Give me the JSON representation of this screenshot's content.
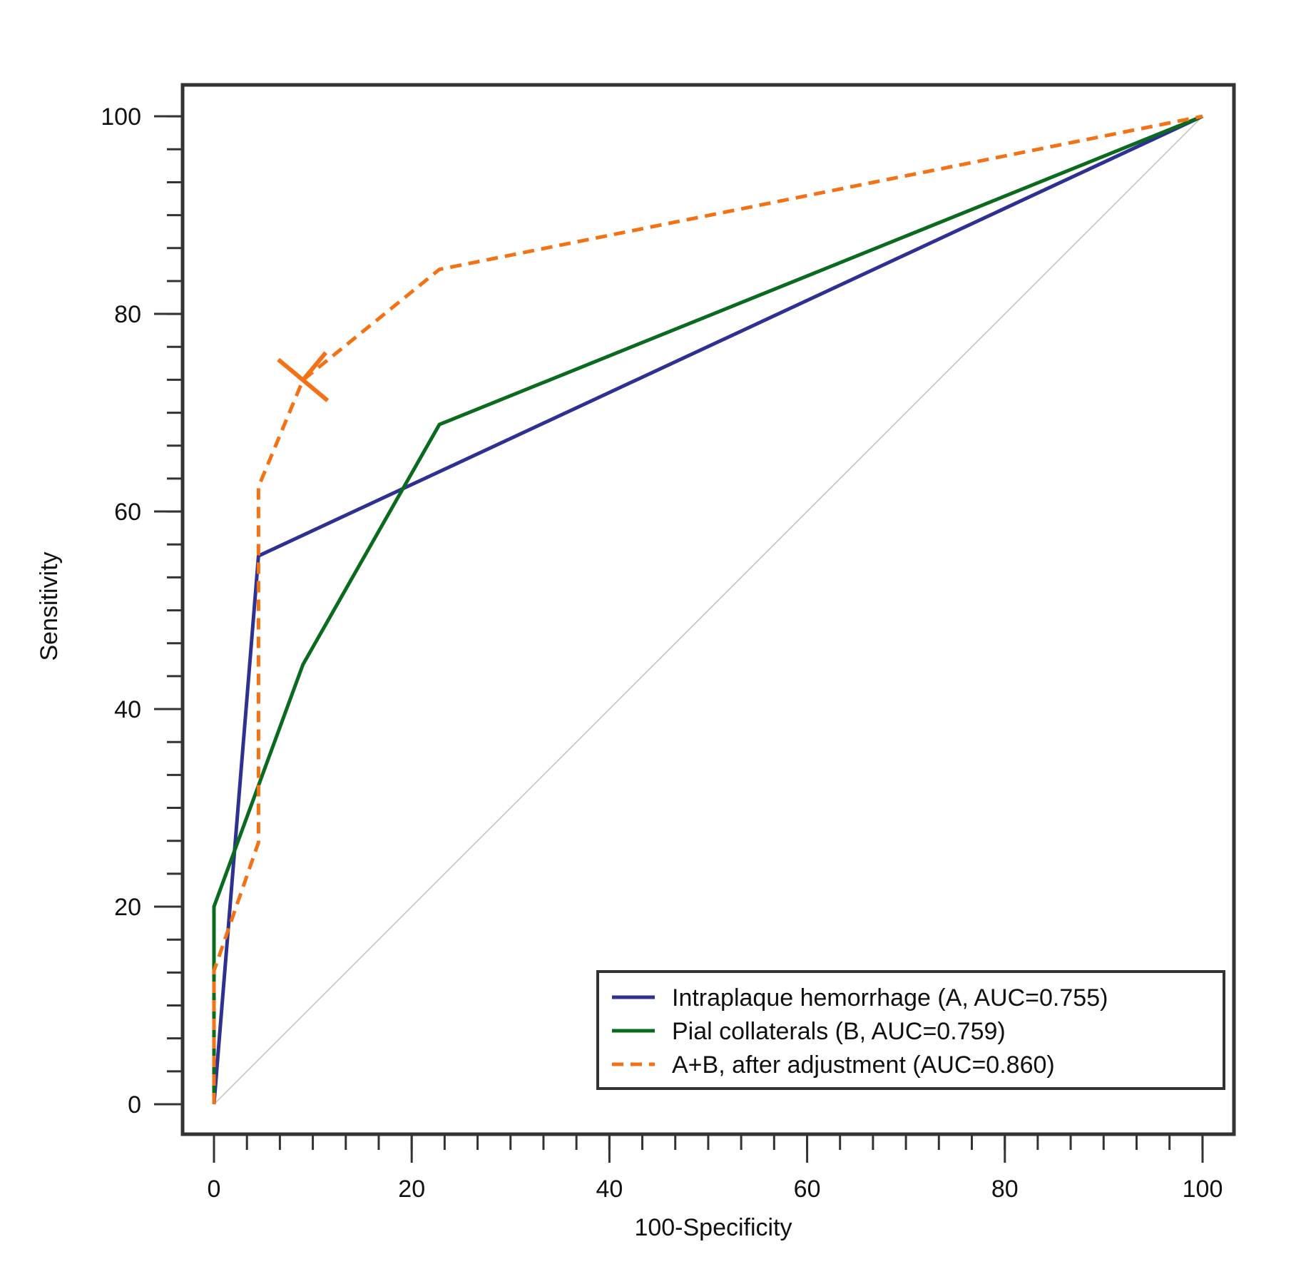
{
  "chart_data": {
    "type": "line",
    "title": "",
    "xlabel": "100-Specificity",
    "ylabel": "Sensitivity",
    "xlim": [
      0,
      100
    ],
    "ylim": [
      0,
      100
    ],
    "x_ticks": [
      "0",
      "20",
      "40",
      "60",
      "80",
      "100"
    ],
    "y_ticks": [
      "0",
      "20",
      "40",
      "60",
      "80",
      "100"
    ],
    "x_tick_values": [
      0,
      20,
      40,
      60,
      80,
      100
    ],
    "y_tick_values": [
      0,
      20,
      40,
      60,
      80,
      100
    ],
    "minor_tick_step": 3.333,
    "grid": false,
    "legend_position": "bottom-right",
    "reference_line": {
      "name": "chance diagonal",
      "x": [
        0,
        100
      ],
      "y": [
        0,
        100
      ],
      "color": "#c0c0c0"
    },
    "series": [
      {
        "name": "Intraplaque hemorrhage (A, AUC=0.755)",
        "style": "solid",
        "color": "#2e3192",
        "x": [
          0,
          4.5,
          100
        ],
        "y": [
          0,
          55.5,
          100
        ]
      },
      {
        "name": "Pial collaterals (B, AUC=0.759)",
        "style": "solid",
        "color": "#0a6b1e",
        "x": [
          0,
          0,
          9,
          22.8,
          100
        ],
        "y": [
          0,
          20,
          44.5,
          68.8,
          100
        ]
      },
      {
        "name": "A+B, after adjustment (AUC=0.860)",
        "style": "dashed",
        "color": "#f47216",
        "x": [
          0,
          0,
          4.5,
          4.5,
          9,
          22.8,
          100
        ],
        "y": [
          0,
          13.5,
          26.5,
          62.5,
          73.3,
          84.5,
          100
        ]
      }
    ],
    "annotations": [
      {
        "type": "optimal-cutoff-marker",
        "series": "A+B, after adjustment (AUC=0.860)",
        "x": 9,
        "y": 73.3,
        "color": "#f47216"
      }
    ]
  }
}
